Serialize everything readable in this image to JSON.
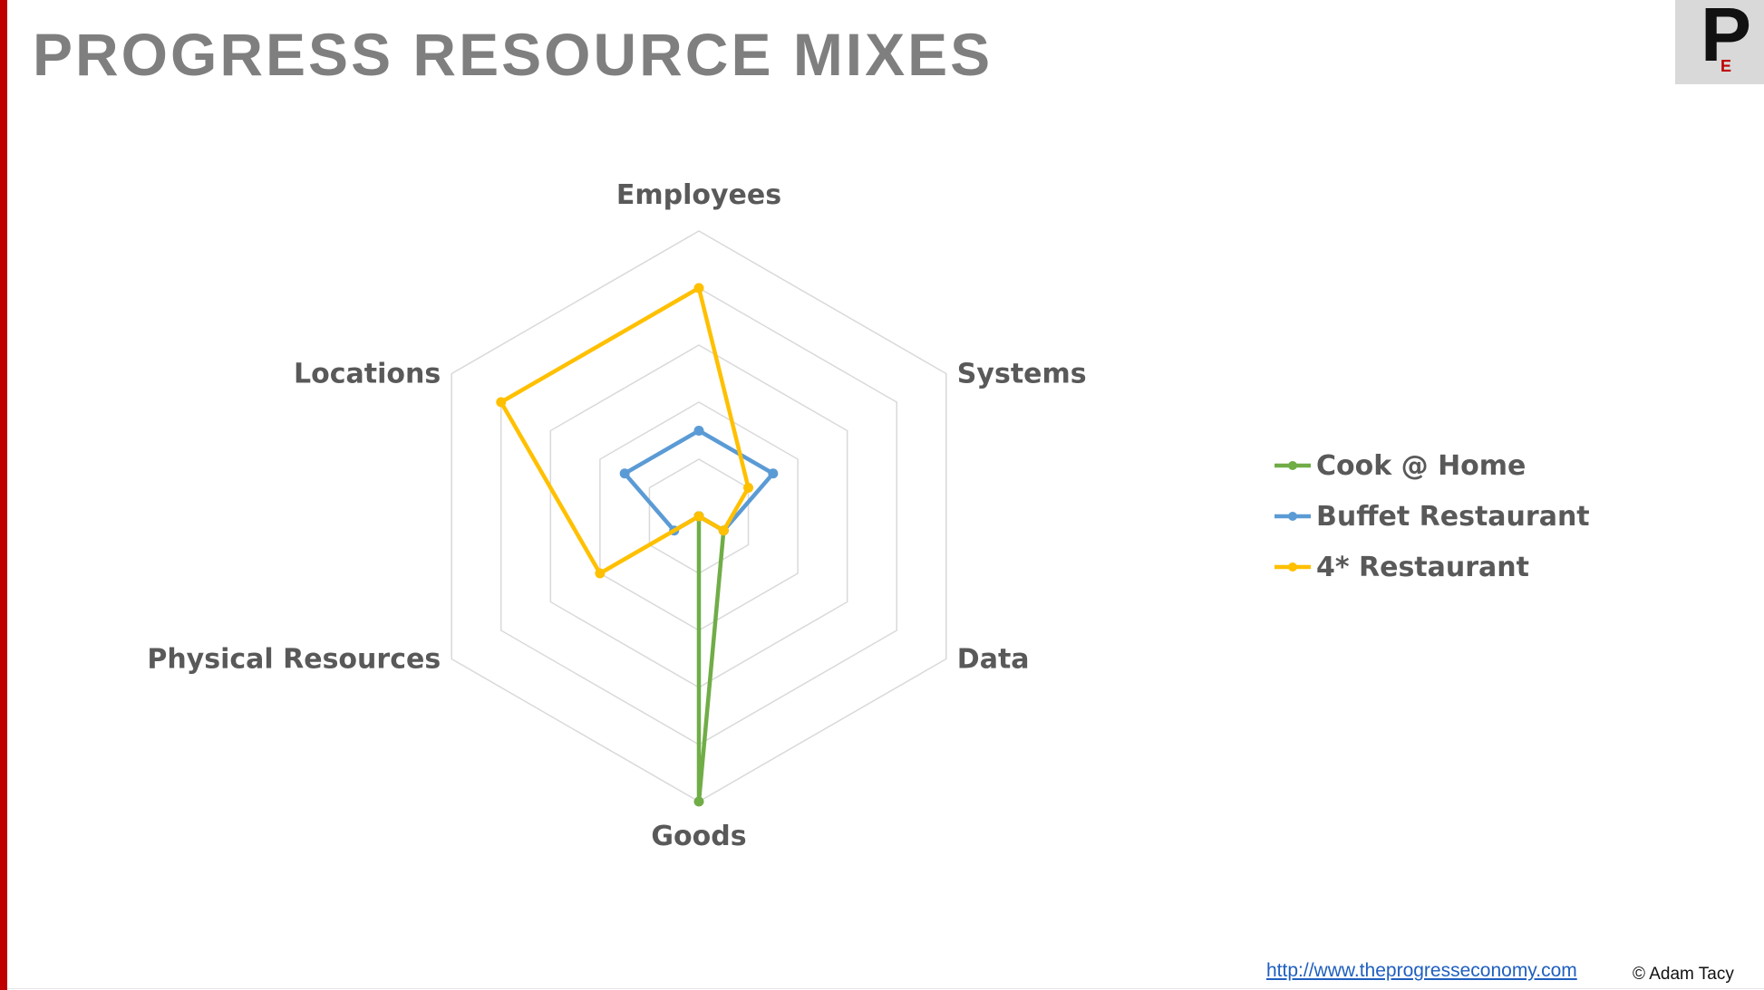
{
  "slide": {
    "title": "PROGRESS RESOURCE MIXES",
    "accent_color": "#c00000",
    "logo": {
      "letter": "P",
      "sub_letter": "E",
      "sub_color": "#c00000"
    },
    "footer": {
      "link_text": "http://www.theprogresseconomy.com",
      "copyright": "© Adam Tacy"
    }
  },
  "chart_data": {
    "type": "radar",
    "categories": [
      "Employees",
      "Systems",
      "Data",
      "Goods",
      "Physical Resources",
      "Locations"
    ],
    "rmax": 5,
    "grid_rings": 5,
    "grid_color": "#d9d9d9",
    "legend_position": "right",
    "series": [
      {
        "name": "Cook @ Home",
        "color": "#70ad47",
        "values": [
          0,
          0,
          0.5,
          5,
          0,
          0
        ]
      },
      {
        "name": "Buffet Restaurant",
        "color": "#5b9bd5",
        "values": [
          1.5,
          1.5,
          0.5,
          0,
          0.5,
          1.5
        ]
      },
      {
        "name": "4* Restaurant",
        "color": "#ffc000",
        "values": [
          4,
          1,
          0.5,
          0,
          2,
          4
        ]
      }
    ]
  }
}
